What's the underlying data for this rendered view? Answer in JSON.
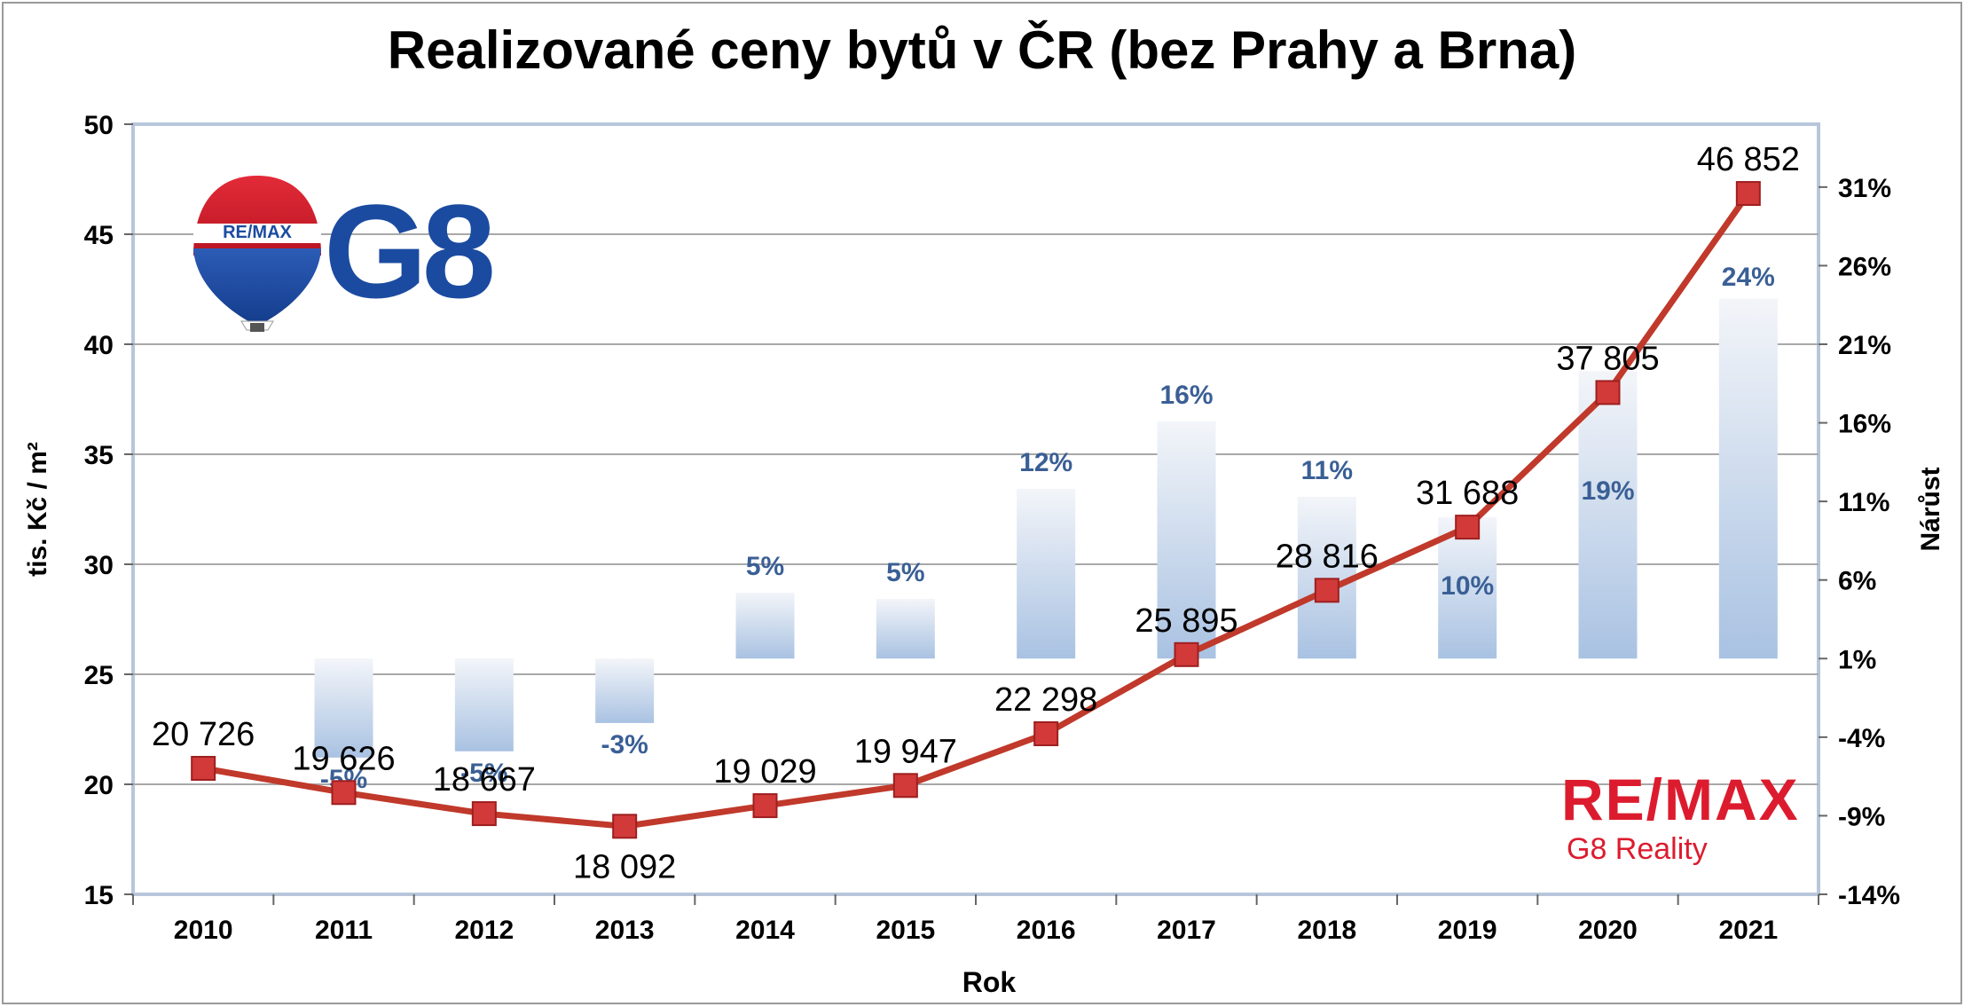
{
  "chart_data": {
    "type": "bar+line",
    "title": "Realizované ceny bytů v ČR (bez Prahy a Brna)",
    "xlabel": "Rok",
    "ylabel_left": "tis. Kč / m²",
    "ylabel_right": "Nárůst",
    "categories": [
      "2010",
      "2011",
      "2012",
      "2013",
      "2014",
      "2015",
      "2016",
      "2017",
      "2018",
      "2019",
      "2020",
      "2021"
    ],
    "left_axis": {
      "min": 15,
      "max": 50,
      "ticks": [
        "15",
        "20",
        "25",
        "30",
        "35",
        "40",
        "45",
        "50"
      ]
    },
    "right_axis": {
      "min": -14,
      "max": 35,
      "ticks": [
        "-14%",
        "-9%",
        "-4%",
        "1%",
        "6%",
        "11%",
        "16%",
        "21%",
        "26%",
        "31%"
      ]
    },
    "grid": true,
    "price_series": {
      "values": [
        20.726,
        19.626,
        18.667,
        18.092,
        19.029,
        19.947,
        22.298,
        25.895,
        28.816,
        31.688,
        37.805,
        46.852
      ],
      "labels": [
        "20 726",
        "19 626",
        "18 667",
        "18 092",
        "19 029",
        "19 947",
        "22 298",
        "25 895",
        "28 816",
        "31 688",
        "37 805",
        "46 852"
      ],
      "color": "#c0392b"
    },
    "growth_series": {
      "values": [
        null,
        -5.3,
        -4.9,
        -3.1,
        5.2,
        4.8,
        11.8,
        16.1,
        11.3,
        10.0,
        19.3,
        23.9
      ],
      "labels": [
        "",
        "-5%",
        "-5%",
        "-3%",
        "5%",
        "5%",
        "12%",
        "16%",
        "11%",
        "10%",
        "19%",
        "24%"
      ],
      "color": "#3a5f95"
    }
  },
  "logos": {
    "balloon_text": "RE/MAX",
    "g8": "G8",
    "remax": "RE/MAX",
    "remax_sub": "G8 Reality"
  },
  "colors": {
    "remax_red": "#dc1c2e",
    "remax_blue": "#1b4ba0",
    "line_red": "#c0392b",
    "pct_blue": "#3a5f95"
  }
}
